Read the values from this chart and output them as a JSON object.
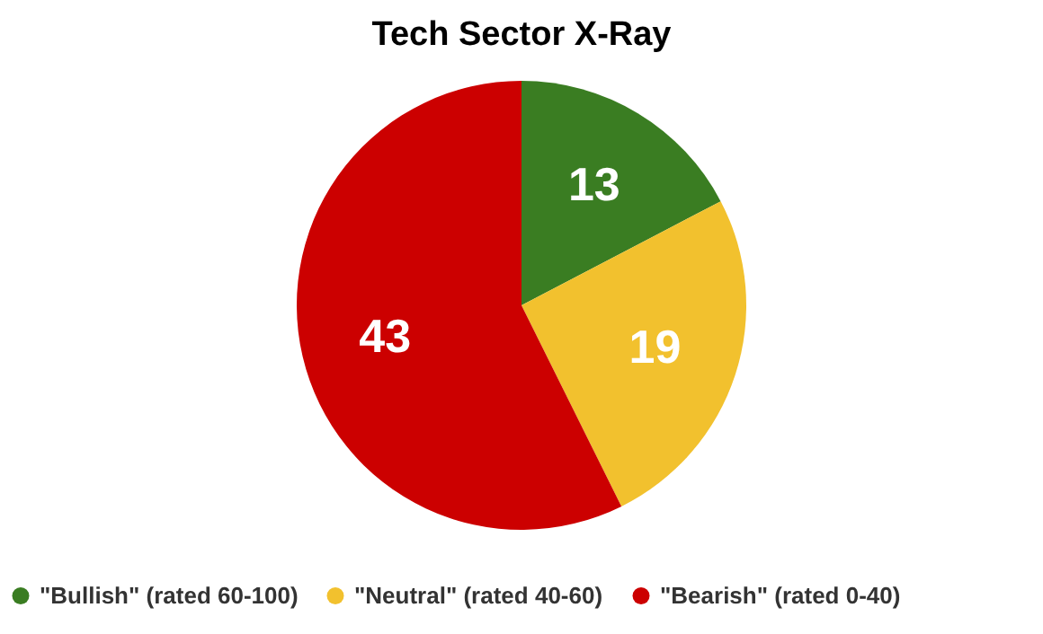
{
  "chart_data": {
    "type": "pie",
    "title": "Tech Sector X-Ray",
    "categories": [
      "\"Bullish\" (rated 60-100)",
      "\"Neutral\" (rated 40-60)",
      "\"Bearish\" (rated 0-40)"
    ],
    "values": [
      13,
      19,
      43
    ],
    "colors": [
      "#3a7d22",
      "#f2c12e",
      "#cc0000"
    ],
    "data_labels": true,
    "legend": "bottom"
  }
}
